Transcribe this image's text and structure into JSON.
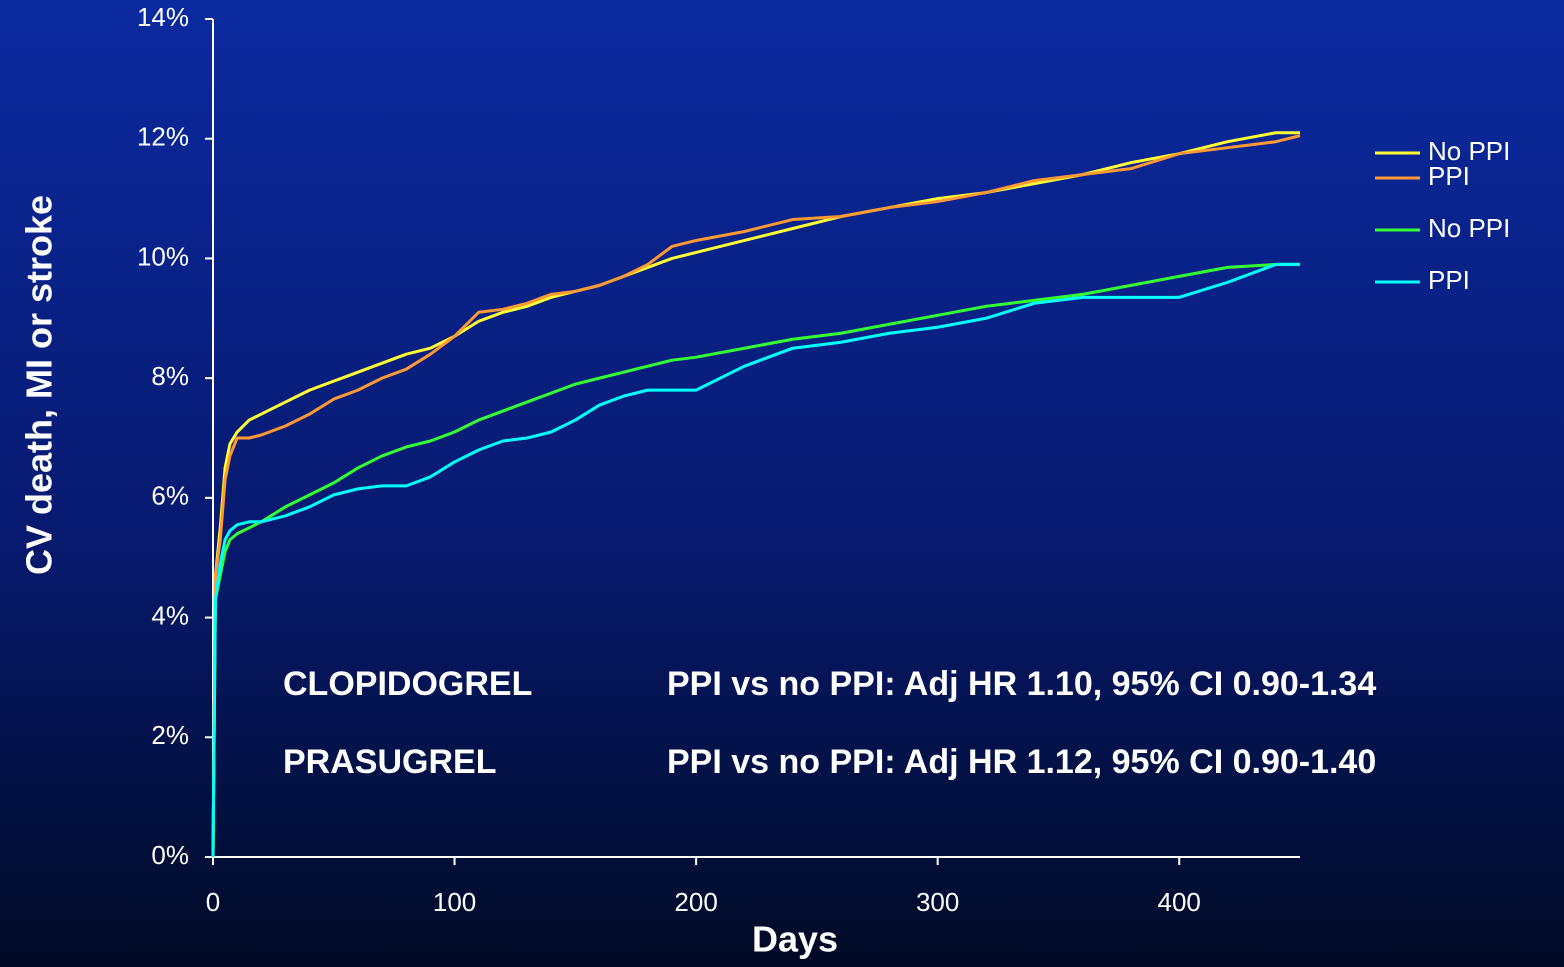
{
  "chart_data": {
    "type": "line",
    "x_label": "Days",
    "y_label": "CV death, MI or stroke",
    "x": [
      0,
      1,
      3,
      5,
      7,
      10,
      15,
      20,
      30,
      40,
      50,
      60,
      70,
      80,
      90,
      100,
      110,
      120,
      130,
      140,
      150,
      160,
      170,
      180,
      190,
      200,
      220,
      240,
      260,
      280,
      300,
      320,
      340,
      360,
      380,
      400,
      420,
      440,
      450
    ],
    "series": [
      {
        "name": "No PPI",
        "color": "#ffff33",
        "values": [
          0,
          4.7,
          5.5,
          6.5,
          6.9,
          7.1,
          7.3,
          7.4,
          7.6,
          7.8,
          7.95,
          8.1,
          8.25,
          8.4,
          8.5,
          8.7,
          8.95,
          9.1,
          9.2,
          9.35,
          9.45,
          9.55,
          9.7,
          9.85,
          10.0,
          10.1,
          10.3,
          10.5,
          10.7,
          10.85,
          11.0,
          11.1,
          11.25,
          11.4,
          11.6,
          11.75,
          11.95,
          12.1,
          12.1
        ]
      },
      {
        "name": "PPI",
        "color": "#ff9933",
        "values": [
          0,
          4.7,
          5.3,
          6.3,
          6.7,
          7.0,
          7.0,
          7.05,
          7.2,
          7.4,
          7.65,
          7.8,
          8.0,
          8.15,
          8.4,
          8.7,
          9.1,
          9.15,
          9.25,
          9.4,
          9.45,
          9.55,
          9.7,
          9.9,
          10.2,
          10.3,
          10.45,
          10.65,
          10.7,
          10.85,
          10.95,
          11.1,
          11.3,
          11.4,
          11.5,
          11.75,
          11.85,
          11.95,
          12.05
        ]
      },
      {
        "name": "No PPI",
        "color": "#33ff33",
        "values": [
          0,
          4.3,
          4.7,
          5.1,
          5.3,
          5.4,
          5.5,
          5.6,
          5.85,
          6.05,
          6.25,
          6.5,
          6.7,
          6.85,
          6.95,
          7.1,
          7.3,
          7.45,
          7.6,
          7.75,
          7.9,
          8.0,
          8.1,
          8.2,
          8.3,
          8.35,
          8.5,
          8.65,
          8.75,
          8.9,
          9.05,
          9.2,
          9.3,
          9.4,
          9.55,
          9.7,
          9.85,
          9.9,
          9.9
        ]
      },
      {
        "name": "PPI",
        "color": "#00ffff",
        "values": [
          0,
          4.3,
          4.9,
          5.3,
          5.45,
          5.55,
          5.6,
          5.6,
          5.7,
          5.85,
          6.05,
          6.15,
          6.2,
          6.2,
          6.35,
          6.6,
          6.8,
          6.95,
          7.0,
          7.1,
          7.3,
          7.55,
          7.7,
          7.8,
          7.8,
          7.8,
          8.2,
          8.5,
          8.6,
          8.75,
          8.85,
          9.0,
          9.25,
          9.35,
          9.35,
          9.35,
          9.6,
          9.9,
          9.9
        ]
      }
    ],
    "xlim": [
      0,
      450
    ],
    "xticks": [
      0,
      100,
      200,
      300,
      400
    ],
    "ylim": [
      0,
      14
    ],
    "yticks": [
      {
        "value": 0,
        "label": "0%"
      },
      {
        "value": 2,
        "label": "2%"
      },
      {
        "value": 4,
        "label": "4%"
      },
      {
        "value": 6,
        "label": "6%"
      },
      {
        "value": 8,
        "label": "8%"
      },
      {
        "value": 10,
        "label": "10%"
      },
      {
        "value": 12,
        "label": "12%"
      },
      {
        "value": 14,
        "label": "14%"
      }
    ],
    "legend": "right",
    "annotations": [
      {
        "drug": "CLOPIDOGREL",
        "text": "PPI vs no PPI: Adj HR 1.10, 95% CI 0.90-1.34"
      },
      {
        "drug": "PRASUGREL",
        "text": "PPI vs no PPI: Adj HR 1.12, 95% CI 0.90-1.40"
      }
    ]
  }
}
